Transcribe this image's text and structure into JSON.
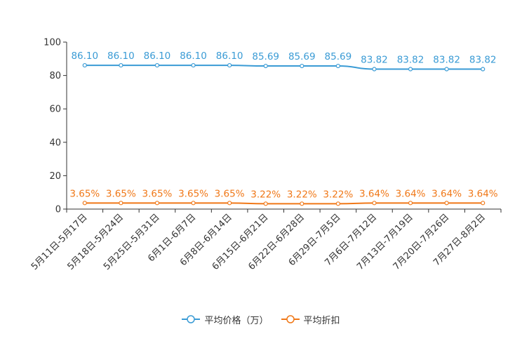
{
  "chart_data": {
    "type": "line",
    "categories": [
      "5月11日-5月17日",
      "5月18日-5月24日",
      "5月25日-5月31日",
      "6月1日-6月7日",
      "6月8日-6月14日",
      "6月15日-6月21日",
      "6月22日-6月28日",
      "6月29日-7月5日",
      "7月6日-7月12日",
      "7月13日-7月19日",
      "7月20日-7月26日",
      "7月27日-8月2日"
    ],
    "ylim": [
      0,
      100
    ],
    "yticks": [
      0,
      20,
      40,
      60,
      80,
      100
    ],
    "series": [
      {
        "name": "平均价格（万）",
        "color": "#3a9bd5",
        "values": [
          86.1,
          86.1,
          86.1,
          86.1,
          86.1,
          85.69,
          85.69,
          85.69,
          83.82,
          83.82,
          83.82,
          83.82
        ],
        "labels": [
          "86.10",
          "86.10",
          "86.10",
          "86.10",
          "86.10",
          "85.69",
          "85.69",
          "85.69",
          "83.82",
          "83.82",
          "83.82",
          "83.82"
        ]
      },
      {
        "name": "平均折扣",
        "color": "#f07818",
        "values": [
          3.65,
          3.65,
          3.65,
          3.65,
          3.65,
          3.22,
          3.22,
          3.22,
          3.64,
          3.64,
          3.64,
          3.64
        ],
        "labels": [
          "3.65%",
          "3.65%",
          "3.65%",
          "3.65%",
          "3.65%",
          "3.22%",
          "3.22%",
          "3.22%",
          "3.64%",
          "3.64%",
          "3.64%",
          "3.64%"
        ]
      }
    ],
    "legend_position": "bottom-center"
  }
}
